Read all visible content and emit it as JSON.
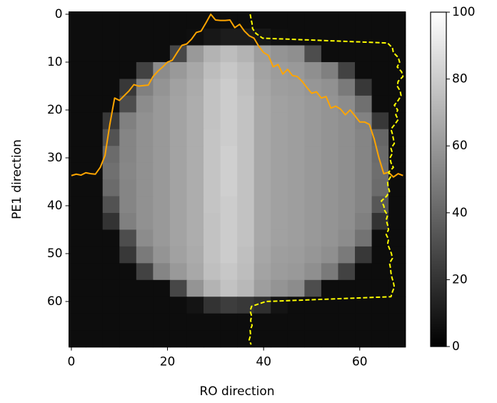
{
  "chart_data": {
    "type": "heatmap",
    "xlabel": "RO direction",
    "ylabel": "PE1 direction",
    "colormap": "gray",
    "xlim": [
      -0.5,
      69.5
    ],
    "ylim": [
      69.5,
      -0.5
    ],
    "xticks": [
      0,
      20,
      40,
      60
    ],
    "yticks": [
      0,
      10,
      20,
      30,
      40,
      50,
      60
    ],
    "colorbar": {
      "lim": [
        0,
        100
      ],
      "ticks": [
        0,
        20,
        40,
        60,
        80,
        100
      ]
    },
    "z": [
      [
        5,
        5,
        5,
        5,
        5,
        5,
        5,
        5,
        5,
        5,
        5,
        5,
        5,
        5,
        5,
        5,
        5,
        5,
        5,
        5
      ],
      [
        5,
        5,
        5,
        5,
        5,
        5,
        5,
        6,
        9,
        11,
        11,
        9,
        6,
        5,
        5,
        5,
        5,
        5,
        5,
        5
      ],
      [
        5,
        5,
        5,
        5,
        5,
        5,
        28,
        60,
        70,
        74,
        70,
        62,
        58,
        56,
        30,
        5,
        5,
        5,
        5,
        5
      ],
      [
        5,
        5,
        5,
        5,
        26,
        55,
        60,
        66,
        74,
        78,
        74,
        64,
        61,
        60,
        56,
        50,
        26,
        5,
        5,
        5
      ],
      [
        5,
        5,
        5,
        22,
        50,
        58,
        63,
        67,
        76,
        80,
        75,
        65,
        62,
        61,
        59,
        57,
        48,
        22,
        5,
        5
      ],
      [
        5,
        5,
        5,
        30,
        55,
        60,
        64,
        68,
        76,
        80,
        76,
        66,
        63,
        62,
        60,
        58,
        55,
        44,
        5,
        5
      ],
      [
        5,
        5,
        22,
        50,
        57,
        60,
        64,
        68,
        76,
        80,
        76,
        66,
        63,
        62,
        60,
        58,
        56,
        51,
        22,
        5
      ],
      [
        5,
        5,
        32,
        52,
        57,
        60,
        64,
        68,
        77,
        80,
        76,
        66,
        63,
        62,
        60,
        58,
        56,
        52,
        40,
        5
      ],
      [
        5,
        5,
        42,
        52,
        57,
        60,
        64,
        68,
        77,
        81,
        76,
        66,
        63,
        62,
        60,
        58,
        56,
        52,
        42,
        5
      ],
      [
        5,
        5,
        44,
        53,
        57,
        60,
        64,
        68,
        77,
        81,
        76,
        66,
        63,
        62,
        60,
        58,
        56,
        52,
        43,
        5
      ],
      [
        5,
        5,
        42,
        52,
        57,
        60,
        64,
        68,
        77,
        81,
        76,
        66,
        63,
        62,
        60,
        58,
        56,
        52,
        42,
        5
      ],
      [
        5,
        5,
        32,
        52,
        57,
        60,
        64,
        68,
        77,
        80,
        76,
        66,
        63,
        62,
        60,
        58,
        56,
        52,
        34,
        5
      ],
      [
        5,
        5,
        20,
        50,
        57,
        60,
        64,
        68,
        76,
        80,
        76,
        66,
        63,
        62,
        60,
        58,
        56,
        50,
        20,
        5
      ],
      [
        5,
        5,
        5,
        30,
        55,
        60,
        64,
        68,
        76,
        80,
        76,
        66,
        63,
        62,
        60,
        58,
        55,
        45,
        5,
        5
      ],
      [
        5,
        5,
        5,
        22,
        48,
        58,
        63,
        67,
        76,
        80,
        75,
        65,
        62,
        61,
        59,
        56,
        48,
        22,
        5,
        5
      ],
      [
        5,
        5,
        5,
        5,
        26,
        52,
        60,
        66,
        75,
        78,
        74,
        64,
        61,
        60,
        56,
        48,
        26,
        5,
        5,
        5
      ],
      [
        5,
        5,
        5,
        5,
        5,
        5,
        28,
        58,
        70,
        76,
        72,
        62,
        58,
        55,
        30,
        5,
        5,
        5,
        5,
        5
      ],
      [
        5,
        5,
        5,
        5,
        5,
        5,
        5,
        8,
        20,
        24,
        22,
        18,
        8,
        5,
        5,
        5,
        5,
        5,
        5,
        5
      ],
      [
        5,
        5,
        5,
        5,
        5,
        5,
        5,
        5,
        5,
        5,
        5,
        5,
        5,
        5,
        5,
        5,
        5,
        5,
        5,
        5
      ],
      [
        5,
        5,
        5,
        5,
        5,
        5,
        5,
        5,
        5,
        5,
        5,
        5,
        5,
        5,
        5,
        5,
        5,
        5,
        5,
        5
      ]
    ],
    "series": [
      {
        "color": "#ffa500",
        "linestyle": "solid",
        "x": [
          0,
          1,
          2,
          3,
          4,
          5,
          6,
          7,
          8,
          9,
          10,
          11,
          12,
          13,
          14,
          15,
          16,
          17,
          18,
          19,
          20,
          21,
          22,
          23,
          24,
          25,
          26,
          27,
          28,
          29,
          30,
          31,
          32,
          33,
          34,
          35,
          36,
          37,
          38,
          39,
          40,
          41,
          42,
          43,
          44,
          45,
          46,
          47,
          48,
          49,
          50,
          51,
          52,
          53,
          54,
          55,
          56,
          57,
          58,
          59,
          60,
          61,
          62,
          63,
          64,
          65,
          66,
          67,
          68,
          69
        ],
        "y": [
          33.7,
          33.4,
          33.6,
          33.1,
          33.3,
          33.4,
          32,
          29.5,
          23,
          17.5,
          18,
          17,
          16,
          14.7,
          15,
          14.9,
          14.8,
          13,
          11.9,
          11,
          10,
          9.6,
          8,
          6.5,
          6.2,
          5.2,
          3.8,
          3.5,
          1.8,
          0,
          1.2,
          1.3,
          1.3,
          1.2,
          2.8,
          2.1,
          3.5,
          4.5,
          5,
          6.7,
          8,
          8.6,
          11,
          10.5,
          12.5,
          11.5,
          12.8,
          13,
          14,
          15.3,
          16.5,
          16.2,
          17.5,
          17.2,
          19.6,
          19.2,
          19.8,
          21,
          20,
          21.2,
          22.5,
          22.5,
          23,
          26,
          30,
          33.3,
          33,
          34,
          33.3,
          33.7
        ]
      },
      {
        "color": "#ffff00",
        "linestyle": "dashed",
        "x": [
          37.2,
          37.4,
          37.6,
          37.7,
          38.4,
          39.8,
          65.8,
          66.8,
          67,
          68,
          68.3,
          67.8,
          68.7,
          69,
          68,
          67.8,
          68.4,
          68.6,
          68,
          67.2,
          67.9,
          67.5,
          68,
          67.3,
          66.5,
          66.8,
          67,
          67.2,
          66.5,
          66.8,
          66.3,
          66.5,
          67,
          66,
          66.4,
          65.8,
          65.9,
          66.2,
          65.6,
          64.5,
          65,
          65.2,
          65.8,
          65.5,
          65.8,
          66,
          65.5,
          66,
          65.8,
          66.2,
          66.6,
          66.8,
          66.2,
          66.4,
          66.5,
          66.7,
          67,
          67.2,
          66.8,
          66.5,
          40.5,
          37.5,
          37.2,
          37.5,
          37.3,
          37.6,
          37.2,
          37.3,
          37,
          37.4
        ],
        "y": [
          0,
          1,
          2,
          3,
          4,
          5,
          6,
          7,
          8,
          9,
          10,
          11,
          12,
          13,
          14,
          15,
          16,
          17,
          18,
          19,
          20,
          21,
          22,
          23,
          24,
          25,
          26,
          27,
          28,
          29,
          30,
          31,
          32,
          33,
          34,
          35,
          36,
          37,
          38,
          39,
          40,
          41,
          42,
          43,
          44,
          45,
          46,
          47,
          48,
          49,
          50,
          51,
          52,
          53,
          54,
          55,
          56,
          57,
          58,
          59,
          60,
          61,
          62,
          63,
          64,
          65,
          66,
          67,
          68,
          69
        ]
      }
    ]
  }
}
